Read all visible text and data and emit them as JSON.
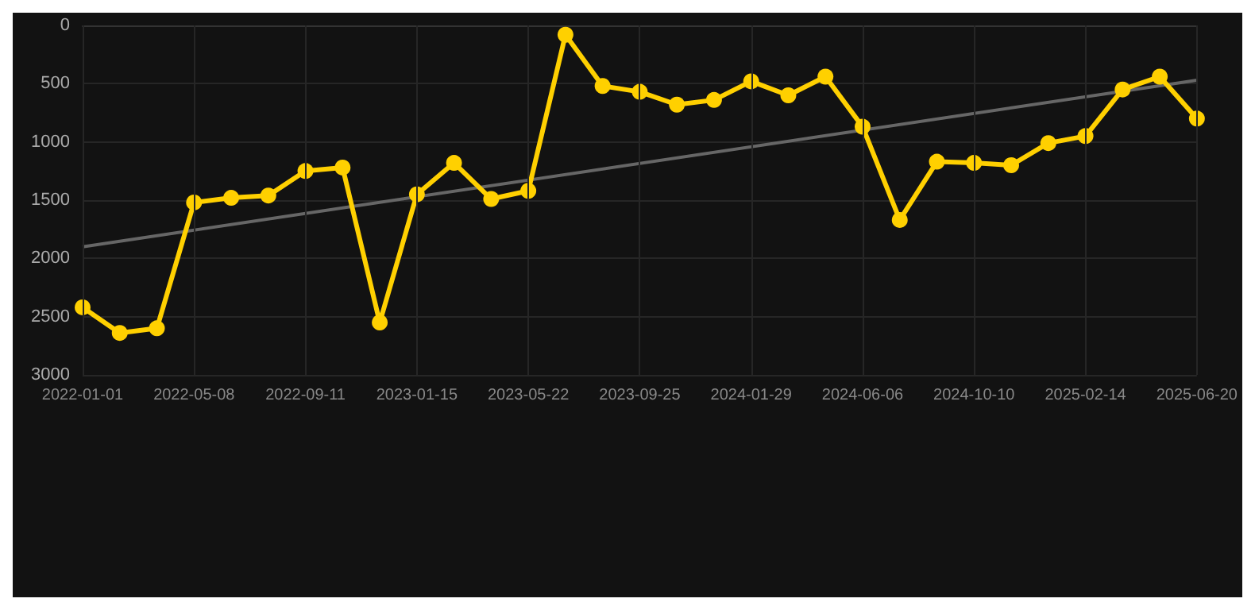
{
  "chart_data": {
    "type": "line",
    "categories": [
      "2022-01-01",
      null,
      null,
      "2022-05-08",
      null,
      null,
      "2022-09-11",
      null,
      null,
      "2023-01-15",
      null,
      null,
      "2023-05-22",
      null,
      null,
      "2023-09-25",
      null,
      null,
      "2024-01-29",
      null,
      null,
      "2024-06-06",
      null,
      null,
      "2024-10-10",
      null,
      null,
      "2025-02-14",
      null,
      null,
      "2025-06-20"
    ],
    "series": [
      {
        "color": "#ffd000",
        "marker": "circle",
        "values": [
          2420,
          2640,
          2600,
          1520,
          1480,
          1460,
          1250,
          1220,
          2550,
          1450,
          1180,
          1490,
          1420,
          80,
          520,
          570,
          680,
          640,
          480,
          600,
          440,
          870,
          1670,
          1170,
          1180,
          1200,
          1010,
          950,
          550,
          440,
          800
        ]
      },
      {
        "type": "line",
        "color": "#666666",
        "marker": "none",
        "values": [
          1900,
          null,
          null,
          null,
          null,
          null,
          null,
          null,
          null,
          null,
          null,
          null,
          null,
          null,
          null,
          null,
          null,
          null,
          null,
          null,
          null,
          null,
          null,
          null,
          null,
          null,
          null,
          null,
          null,
          null,
          470
        ]
      }
    ],
    "ylim": [
      3000,
      0
    ],
    "yticks": [
      0,
      500,
      1000,
      1500,
      2000,
      2500,
      3000
    ],
    "grid": true
  }
}
